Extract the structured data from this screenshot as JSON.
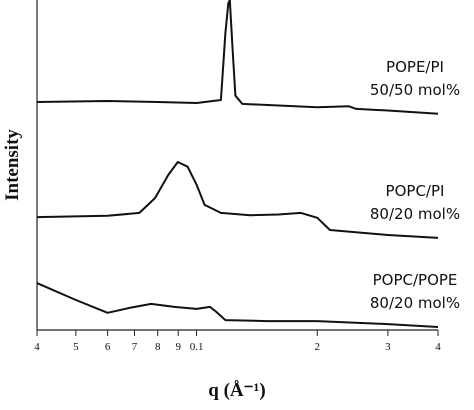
{
  "chart_data": {
    "type": "line",
    "x_label": "q (Å⁻¹)",
    "y_label": "Intensity",
    "xscale": "log",
    "xlim": [
      0.04,
      0.4
    ],
    "ylim": [
      0,
      100
    ],
    "xticks": [
      {
        "value": 0.04,
        "label": "4"
      },
      {
        "value": 0.05,
        "label": "5"
      },
      {
        "value": 0.06,
        "label": "6"
      },
      {
        "value": 0.07,
        "label": "7"
      },
      {
        "value": 0.08,
        "label": "8"
      },
      {
        "value": 0.09,
        "label": "9"
      },
      0.1,
      {
        "value": 0.2,
        "label": "2"
      },
      {
        "value": 0.3,
        "label": "3"
      },
      {
        "value": 0.4,
        "label": "4"
      }
    ],
    "series": [
      {
        "name": "POPE/PI",
        "composition": "50/50 mol%",
        "color": "#111111",
        "x": [
          0.04,
          0.06,
          0.08,
          0.1,
          0.115,
          0.118,
          0.12,
          0.121,
          0.123,
          0.125,
          0.13,
          0.2,
          0.24,
          0.25,
          0.3,
          0.4
        ],
        "values": [
          69.1,
          69.4,
          69.1,
          68.8,
          69.7,
          90,
          99,
          100,
          85,
          71,
          68.5,
          67.5,
          67.8,
          67,
          66.5,
          65.5
        ]
      },
      {
        "name": "POPC/PI",
        "composition": "80/20 mol%",
        "color": "#111111",
        "x": [
          0.04,
          0.06,
          0.072,
          0.0788,
          0.085,
          0.0898,
          0.095,
          0.1,
          0.1047,
          0.115,
          0.136,
          0.16,
          0.182,
          0.2,
          0.215,
          0.3,
          0.4
        ],
        "values": [
          34.2,
          34.6,
          35.5,
          40,
          47,
          50.9,
          49.5,
          44,
          37.9,
          35.5,
          34.8,
          35,
          35.5,
          34,
          30.3,
          28.8,
          27.9
        ]
      },
      {
        "name": "POPC/POPE",
        "composition": "80/20 mol%",
        "color": "#111111",
        "x": [
          0.04,
          0.05,
          0.06,
          0.068,
          0.077,
          0.088,
          0.1,
          0.108,
          0.112,
          0.118,
          0.15,
          0.2,
          0.3,
          0.4
        ],
        "values": [
          14.2,
          9.1,
          5.2,
          6.7,
          7.9,
          7.0,
          6.4,
          7.0,
          5.5,
          3.0,
          2.7,
          2.7,
          1.8,
          0.9
        ]
      }
    ]
  }
}
